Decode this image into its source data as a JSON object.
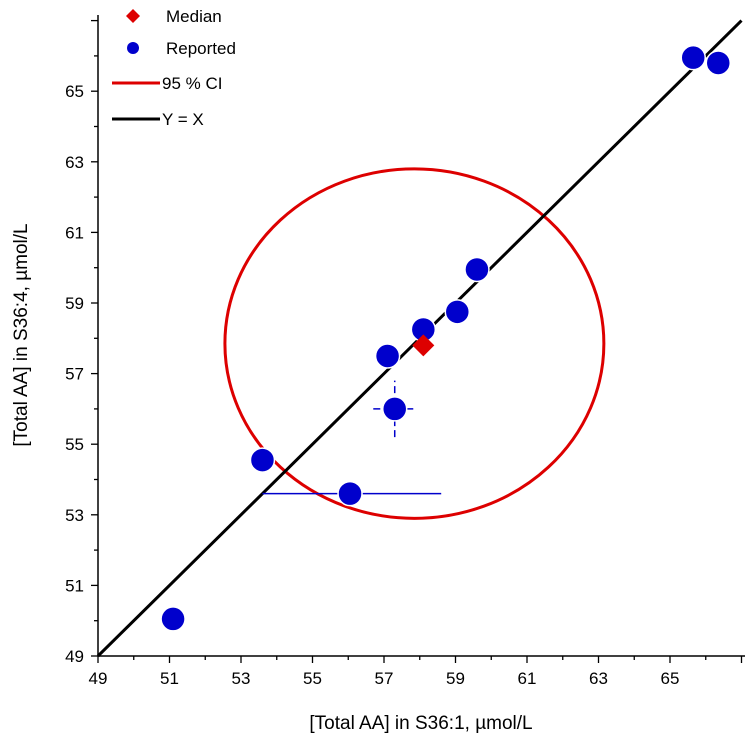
{
  "chart_data": {
    "type": "scatter",
    "xlabel": "[Total AA] in S36:1, µmol/L",
    "ylabel": "[Total AA] in S36:4, µmol/L",
    "xlim": [
      49,
      67
    ],
    "ylim": [
      49,
      67
    ],
    "xticks": [
      "49",
      "51",
      "53",
      "55",
      "57",
      "59",
      "61",
      "63",
      "65"
    ],
    "yticks": [
      "49",
      "51",
      "53",
      "55",
      "57",
      "59",
      "61",
      "63",
      "65"
    ],
    "grid": false,
    "legend_position": "top-left",
    "legend": [
      {
        "label": "Median",
        "marker": "diamond",
        "color": "#dd0000"
      },
      {
        "label": "Reported",
        "marker": "circle",
        "color": "#0000cc"
      },
      {
        "label": "95 % CI",
        "marker": "line",
        "color": "#dd0000"
      },
      {
        "label": "Y = X",
        "marker": "line",
        "color": "#000000"
      }
    ],
    "series": [
      {
        "name": "Reported",
        "color": "#0000cc",
        "points": [
          {
            "x": 51.1,
            "y": 50.05
          },
          {
            "x": 53.6,
            "y": 54.55
          },
          {
            "x": 56.05,
            "y": 53.6,
            "xerr_low": 53.6,
            "xerr_high": 58.6
          },
          {
            "x": 57.1,
            "y": 57.5
          },
          {
            "x": 57.3,
            "y": 56.0,
            "yerr_low": 55.2,
            "yerr_high": 56.8,
            "xerr_low": 56.7,
            "xerr_high": 57.9
          },
          {
            "x": 58.1,
            "y": 58.25
          },
          {
            "x": 59.05,
            "y": 58.75
          },
          {
            "x": 59.6,
            "y": 59.95
          },
          {
            "x": 65.65,
            "y": 65.95,
            "yerr_low": 65.85,
            "yerr_high": 66.05
          },
          {
            "x": 66.35,
            "y": 65.8
          }
        ]
      },
      {
        "name": "Median",
        "color": "#dd0000",
        "points": [
          {
            "x": 58.1,
            "y": 57.8
          }
        ]
      }
    ],
    "ci_ellipse": {
      "cx": 57.85,
      "cy": 57.85,
      "rx": 5.3,
      "ry": 4.95,
      "color": "#dd0000"
    },
    "identity_line": {
      "from": [
        49,
        49
      ],
      "to": [
        67,
        67
      ],
      "color": "#000000"
    }
  }
}
